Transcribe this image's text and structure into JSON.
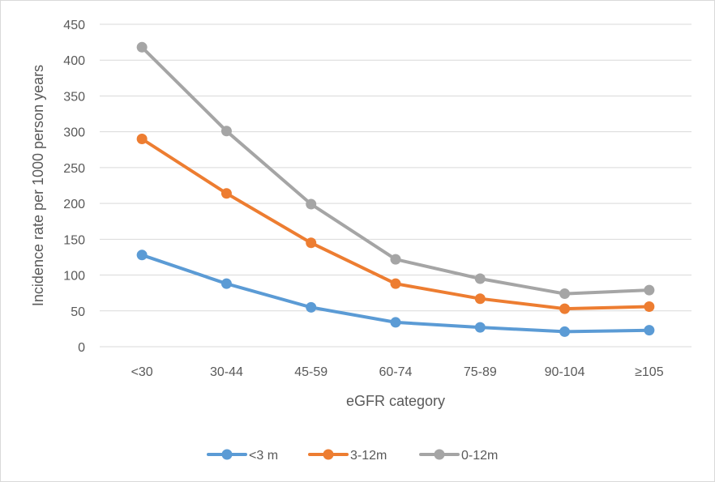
{
  "chart_data": {
    "type": "line",
    "title": "",
    "xlabel": "eGFR category",
    "ylabel": "Incidence rate per 1000 person years",
    "categories": [
      "<30",
      "30-44",
      "45-59",
      "60-74",
      "75-89",
      "90-104",
      "≥105"
    ],
    "ylim": [
      0,
      450
    ],
    "yticks": [
      0,
      50,
      100,
      150,
      200,
      250,
      300,
      350,
      400,
      450
    ],
    "grid": true,
    "legend_position": "bottom",
    "series": [
      {
        "name": "<3 m",
        "color": "#5b9bd5",
        "values": [
          128,
          88,
          55,
          34,
          27,
          21,
          23
        ]
      },
      {
        "name": "3-12m",
        "color": "#ed7d31",
        "values": [
          290,
          214,
          145,
          88,
          67,
          53,
          56
        ]
      },
      {
        "name": "0-12m",
        "color": "#a5a5a5",
        "values": [
          418,
          301,
          199,
          122,
          95,
          74,
          79
        ]
      }
    ]
  }
}
